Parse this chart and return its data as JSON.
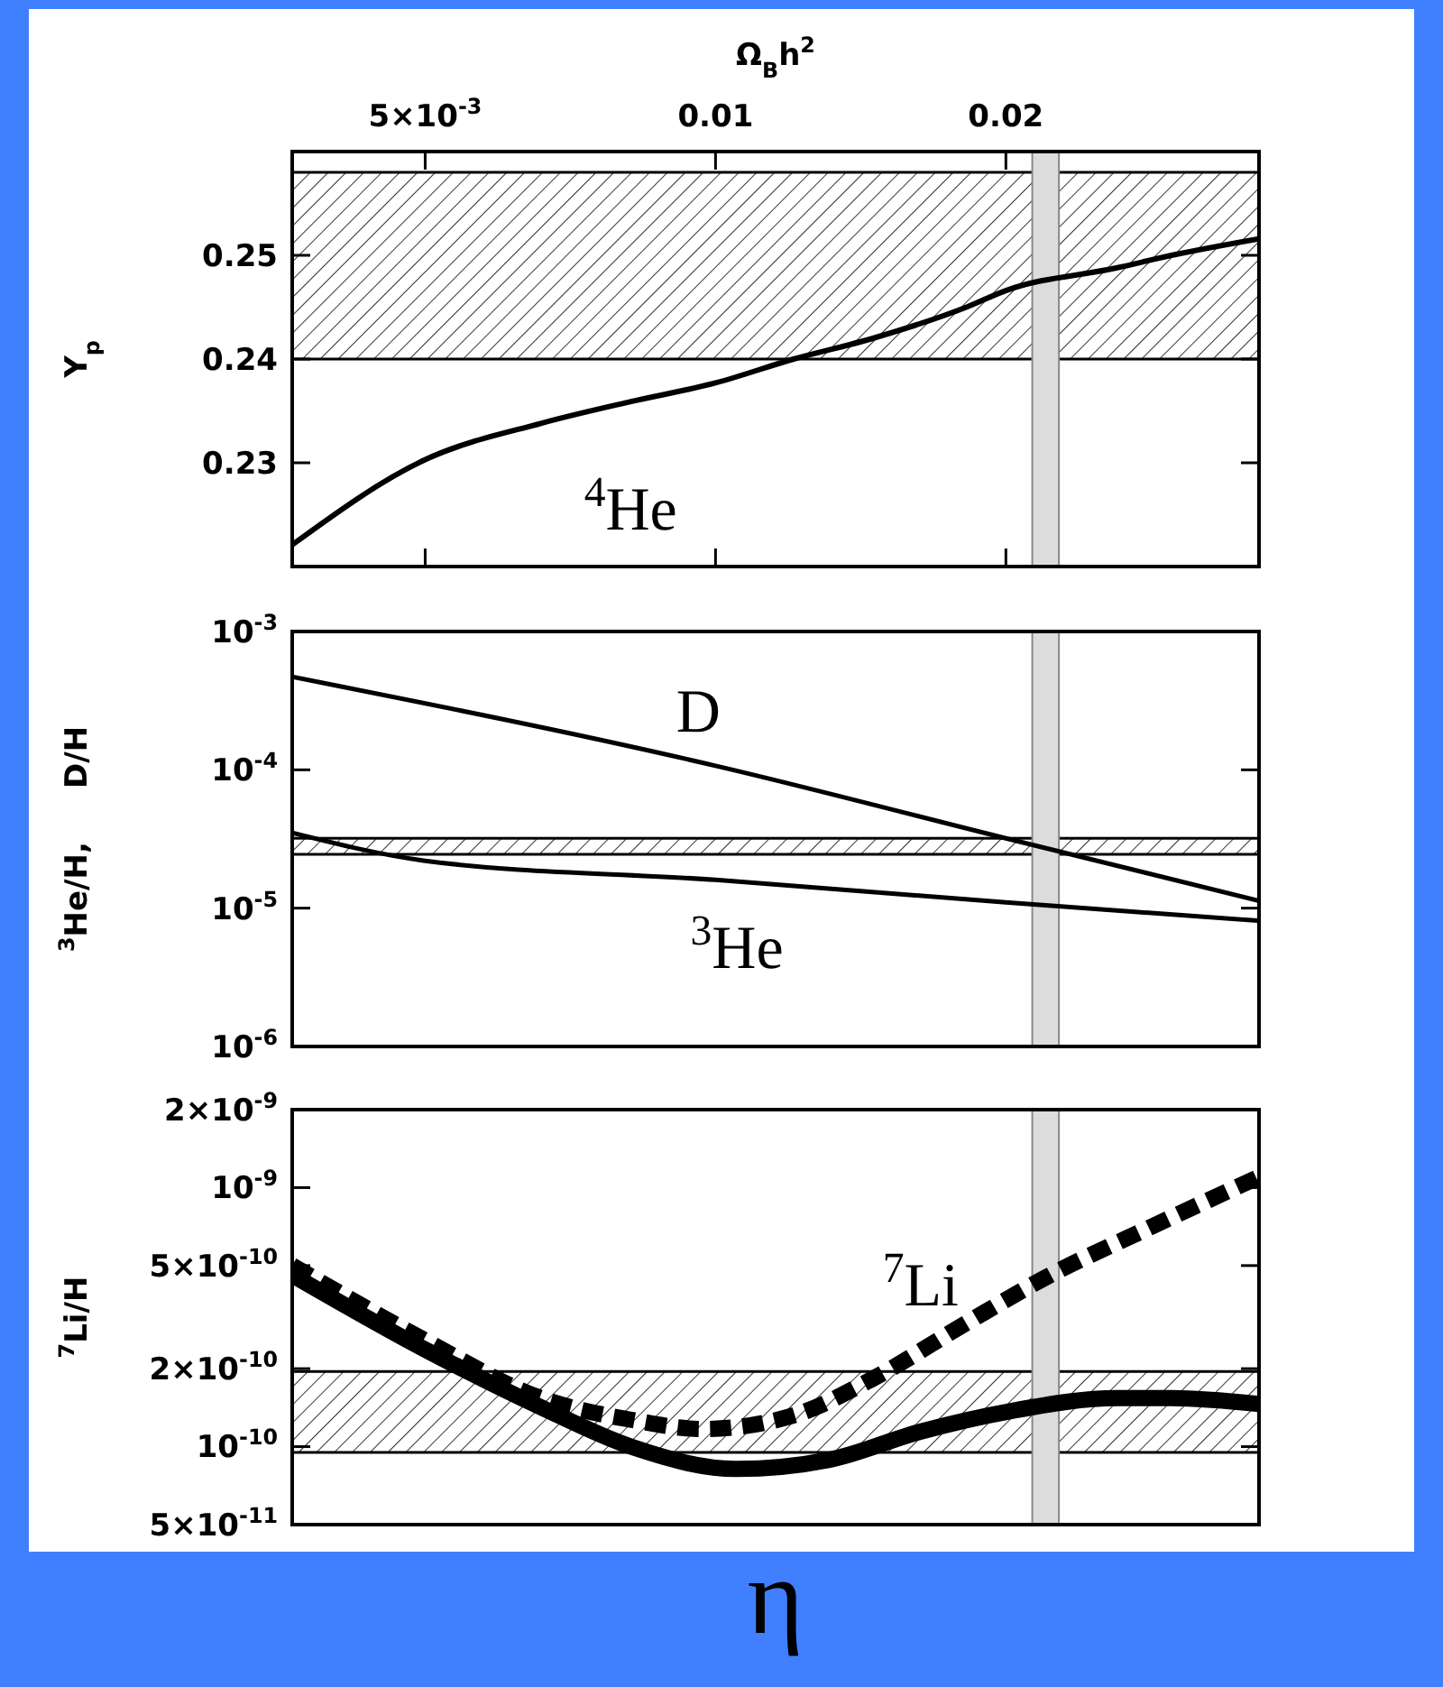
{
  "chart_data": [
    {
      "type": "line",
      "xlabel": "Ω$_{B}$h$^{2}$",
      "ylabel": "Y$_{p}$",
      "log": "x",
      "tick_labels": "both",
      "xlim": [
        0.00364,
        0.0366
      ],
      "xticks": [
        {
          "value": 0.005,
          "label": "5×10$^{-3}$"
        },
        {
          "value": 0.01,
          "label": "0.01"
        },
        {
          "value": 0.02,
          "label": "0.02"
        }
      ],
      "ylim": [
        0.22,
        0.26
      ],
      "yticks": [
        0.23,
        0.24,
        0.25
      ],
      "series": [
        {
          "color": "#000000",
          "x": [
            0.00364,
            0.005,
            0.00659,
            0.00817,
            0.01,
            0.01205,
            0.01456,
            0.0182,
            0.02,
            0.0261,
            0.0297,
            0.0366
          ],
          "values": [
            0.2221,
            0.2303,
            0.2338,
            0.2359,
            0.2377,
            0.24,
            0.242,
            0.245,
            0.2466,
            0.2488,
            0.25,
            0.2516
          ]
        }
      ],
      "bands": [
        {
          "axis": "y",
          "from": 0.24,
          "to": 0.258
        },
        {
          "axis": "x",
          "from": 0.0213,
          "to": 0.0227,
          "color": "#dcdcdc"
        }
      ],
      "annotations": [
        "$^{4}$He"
      ]
    },
    {
      "type": "line",
      "ylabel": "$^{3}$He/H,     D/H",
      "log": "xy",
      "tick_labels": "y",
      "xlim": [
        0.00364,
        0.0366
      ],
      "ylim": [
        1e-06,
        0.001
      ],
      "yticks": [
        {
          "value": 1e-06,
          "label": "10$^{-6}$"
        },
        {
          "value": 1e-05,
          "label": "10$^{-5}$"
        },
        {
          "value": 0.0001,
          "label": "10$^{-4}$"
        },
        {
          "value": 0.001,
          "label": "10$^{-3}$"
        }
      ],
      "series": [
        {
          "color": "#000000",
          "x": [
            0.00364,
            0.01,
            0.02,
            0.0366
          ],
          "values": [
            0.00047,
            0.000107,
            3.2e-05,
            1.13e-05
          ]
        },
        {
          "color": "#000000",
          "x": [
            0.00364,
            0.005,
            0.01,
            0.02,
            0.0366
          ],
          "values": [
            3.5e-05,
            2.2e-05,
            1.6e-05,
            1.1e-05,
            8.1e-06
          ]
        }
      ],
      "bands": [
        {
          "axis": "y",
          "from": 2.45e-05,
          "to": 3.2e-05
        },
        {
          "axis": "x",
          "from": 0.0213,
          "to": 0.0227,
          "color": "#dcdcdc"
        }
      ],
      "annotations": [
        "D",
        "$^{3}$He"
      ]
    },
    {
      "type": "line",
      "xlabel": "η",
      "ylabel": "$^{7}$Li/H",
      "log": "xy",
      "tick_labels": "y",
      "xlim": [
        0.00364,
        0.0366
      ],
      "ylim": [
        5e-11,
        2e-09
      ],
      "yticks": [
        {
          "value": 5e-11,
          "label": "5×10$^{-11}$"
        },
        {
          "value": 1e-10,
          "label": "10$^{-10}$"
        },
        {
          "value": 2e-10,
          "label": "2×10$^{-10}$"
        },
        {
          "value": 5e-10,
          "label": "5×10$^{-10}$"
        },
        {
          "value": 1e-09,
          "label": "10$^{-9}$"
        },
        {
          "value": 2e-09,
          "label": "2×10$^{-9}$"
        }
      ],
      "series": [
        {
          "color": "#000000",
          "x": [
            0.00364,
            0.005,
            0.00659,
            0.00817,
            0.0105,
            0.01313,
            0.01627,
            0.0202,
            0.0261,
            0.0297,
            0.0366
          ],
          "values": [
            4.6e-10,
            2.37e-10,
            1.42e-10,
            1e-10,
            8.2e-11,
            8.9e-11,
            1.14e-10,
            1.37e-10,
            1.54e-10,
            1.54e-10,
            1.46e-10
          ]
        },
        {
          "color": "#000000",
          "line_style": "dashed",
          "x": [
            0.00364,
            0.005,
            0.00659,
            0.00817,
            0.0097,
            0.01205,
            0.01456,
            0.0182,
            0.022,
            0.0284,
            0.0366
          ],
          "values": [
            5e-10,
            2.57e-10,
            1.54e-10,
            1.27e-10,
            1.17e-10,
            1.32e-10,
            1.83e-10,
            3e-10,
            4.5e-10,
            7.1e-10,
            1.1e-09
          ]
        }
      ],
      "bands": [
        {
          "axis": "y",
          "from": 9.5e-11,
          "to": 1.95e-10
        },
        {
          "axis": "x",
          "from": 0.0213,
          "to": 0.0227,
          "color": "#dcdcdc"
        }
      ],
      "annotations": [
        "$^{7}$Li"
      ]
    }
  ]
}
